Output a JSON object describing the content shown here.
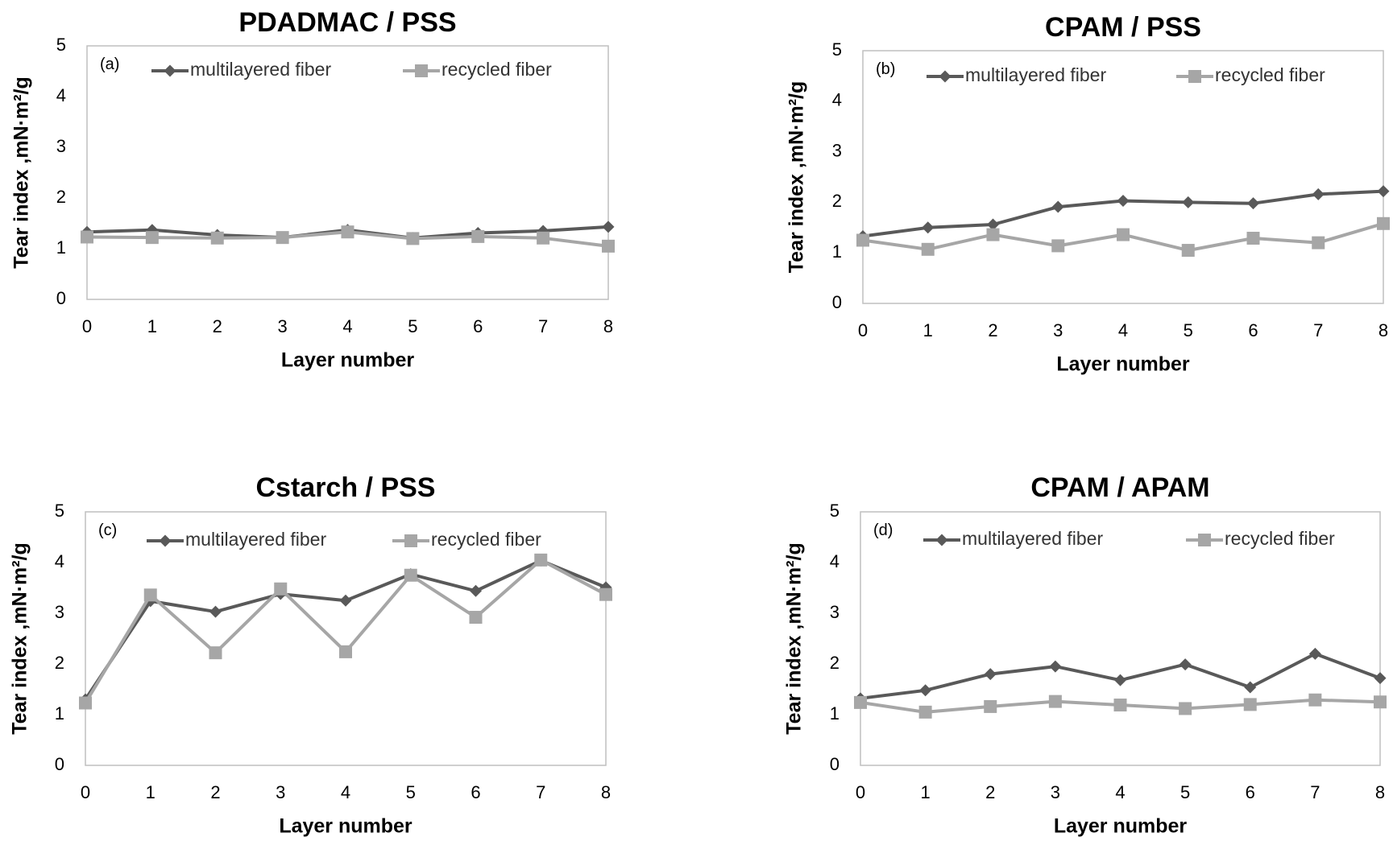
{
  "chart_data": [
    {
      "type": "line",
      "title": "PDADMAC / PSS",
      "panel_label": "(a)",
      "xlabel": "Layer number",
      "ylabel": "Tear index ,mN·m²/g",
      "x": [
        0,
        1,
        2,
        3,
        4,
        5,
        6,
        7,
        8
      ],
      "xlim": [
        0,
        8
      ],
      "ylim": [
        0,
        5
      ],
      "yticks": [
        0,
        1,
        2,
        3,
        4,
        5
      ],
      "legend_position": "top",
      "series": [
        {
          "name": "multilayered fiber",
          "color": "#595959",
          "marker": "diamond",
          "values": [
            1.33,
            1.37,
            1.27,
            1.22,
            1.37,
            1.21,
            1.31,
            1.35,
            1.43
          ]
        },
        {
          "name": "recycled fiber",
          "color": "#a6a6a6",
          "marker": "square",
          "values": [
            1.23,
            1.22,
            1.21,
            1.22,
            1.33,
            1.2,
            1.24,
            1.21,
            1.05
          ]
        }
      ]
    },
    {
      "type": "line",
      "title": "CPAM / PSS",
      "panel_label": "(b)",
      "xlabel": "Layer number",
      "ylabel": "Tear index ,mN·m²/g",
      "x": [
        0,
        1,
        2,
        3,
        4,
        5,
        6,
        7,
        8
      ],
      "xlim": [
        0,
        8
      ],
      "ylim": [
        0,
        5
      ],
      "yticks": [
        0,
        1,
        2,
        3,
        4,
        5
      ],
      "legend_position": "top",
      "series": [
        {
          "name": "multilayered fiber",
          "color": "#595959",
          "marker": "diamond",
          "values": [
            1.33,
            1.5,
            1.56,
            1.91,
            2.03,
            2.0,
            1.98,
            2.16,
            2.22
          ]
        },
        {
          "name": "recycled fiber",
          "color": "#a6a6a6",
          "marker": "square",
          "values": [
            1.25,
            1.07,
            1.36,
            1.14,
            1.36,
            1.05,
            1.29,
            1.2,
            1.58
          ]
        }
      ]
    },
    {
      "type": "line",
      "title": "Cstarch / PSS",
      "panel_label": "(c)",
      "xlabel": "Layer number",
      "ylabel": "Tear index ,mN·m²/g",
      "x": [
        0,
        1,
        2,
        3,
        4,
        5,
        6,
        7,
        8
      ],
      "xlim": [
        0,
        8
      ],
      "ylim": [
        0,
        5
      ],
      "yticks": [
        0,
        1,
        2,
        3,
        4,
        5
      ],
      "legend_position": "top",
      "series": [
        {
          "name": "multilayered fiber",
          "color": "#595959",
          "marker": "diamond",
          "values": [
            1.3,
            3.24,
            3.03,
            3.38,
            3.25,
            3.77,
            3.44,
            4.04,
            3.51
          ]
        },
        {
          "name": "recycled fiber",
          "color": "#a6a6a6",
          "marker": "square",
          "values": [
            1.23,
            3.36,
            2.22,
            3.48,
            2.24,
            3.75,
            2.92,
            4.05,
            3.37
          ]
        }
      ]
    },
    {
      "type": "line",
      "title": "CPAM / APAM",
      "panel_label": "(d)",
      "xlabel": "Layer number",
      "ylabel": "Tear index ,mN·m²/g",
      "x": [
        0,
        1,
        2,
        3,
        4,
        5,
        6,
        7,
        8
      ],
      "xlim": [
        0,
        8
      ],
      "ylim": [
        0,
        5
      ],
      "yticks": [
        0,
        1,
        2,
        3,
        4,
        5
      ],
      "legend_position": "top",
      "series": [
        {
          "name": "multilayered fiber",
          "color": "#595959",
          "marker": "diamond",
          "values": [
            1.32,
            1.48,
            1.8,
            1.95,
            1.68,
            1.99,
            1.54,
            2.2,
            1.72
          ]
        },
        {
          "name": "recycled fiber",
          "color": "#a6a6a6",
          "marker": "square",
          "values": [
            1.24,
            1.05,
            1.16,
            1.26,
            1.19,
            1.12,
            1.2,
            1.29,
            1.25
          ]
        }
      ]
    }
  ]
}
